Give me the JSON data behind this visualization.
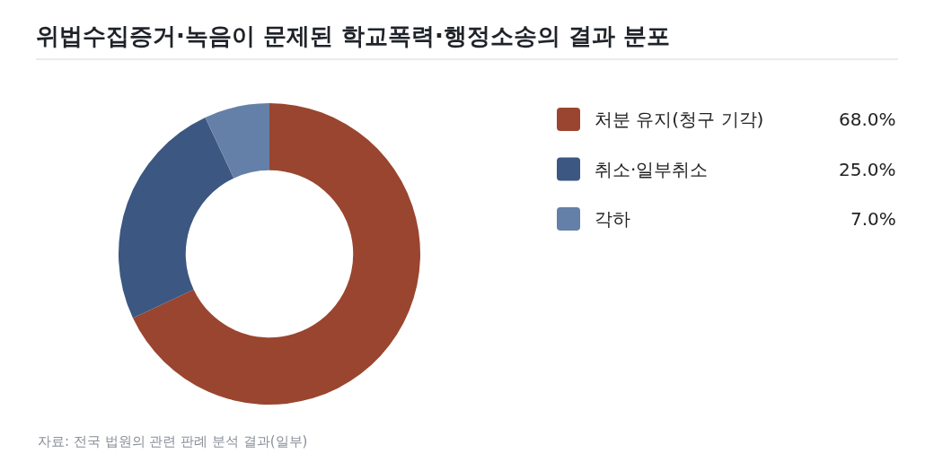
{
  "chart_data": {
    "type": "donut",
    "title": "위법수집증거·녹음이 문제된 학교폭력·행정소송의 결과 분포",
    "categories": [
      "처분 유지(청구 기각)",
      "취소·일부취소",
      "각하"
    ],
    "values": [
      68,
      25,
      7
    ],
    "colors": [
      "#9a452f",
      "#3b5782",
      "#6580a8"
    ],
    "value_labels": [
      "68.0%",
      "25.0%",
      "7.0%"
    ],
    "legend": "right",
    "annotations": [
      "자료: 전국 법원의 관련 판례 분석 결과(일부)"
    ]
  }
}
